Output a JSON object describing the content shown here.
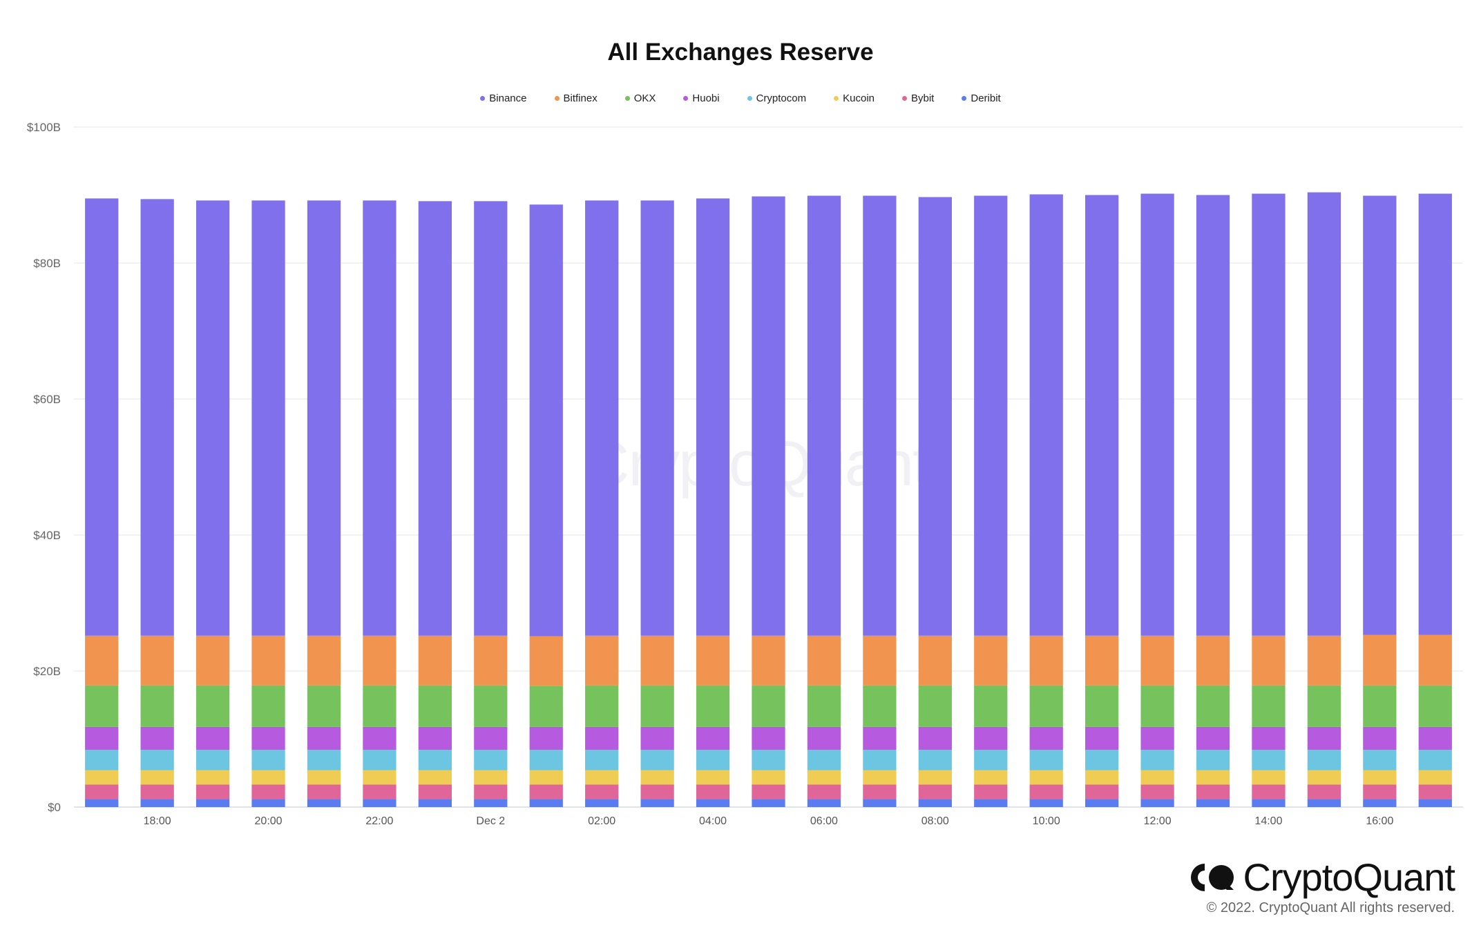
{
  "chart_data": {
    "type": "bar",
    "stacked": true,
    "title": "All Exchanges Reserve",
    "xlabel": "",
    "ylabel": "",
    "ylim": [
      0,
      100
    ],
    "y_ticks": [
      "$0",
      "$20B",
      "$40B",
      "$60B",
      "$80B",
      "$100B"
    ],
    "y_tick_values": [
      0,
      20,
      40,
      60,
      80,
      100
    ],
    "x_tick_labels": [
      "18:00",
      "20:00",
      "22:00",
      "Dec 2",
      "02:00",
      "04:00",
      "06:00",
      "08:00",
      "10:00",
      "12:00",
      "14:00",
      "16:00"
    ],
    "x_tick_indices": [
      1,
      3,
      5,
      7,
      9,
      11,
      13,
      15,
      17,
      19,
      21,
      23
    ],
    "grid": true,
    "legend_position": "top-center",
    "categories": [
      "17:00",
      "18:00",
      "19:00",
      "20:00",
      "21:00",
      "22:00",
      "23:00",
      "Dec 2 00:00",
      "01:00",
      "02:00",
      "03:00",
      "04:00",
      "05:00",
      "06:00",
      "07:00",
      "08:00",
      "09:00",
      "10:00",
      "11:00",
      "12:00",
      "13:00",
      "14:00",
      "15:00",
      "16:00",
      "17:00"
    ],
    "series": [
      {
        "name": "Deribit",
        "color": "#5b7cf0",
        "values": [
          1.2,
          1.2,
          1.2,
          1.2,
          1.2,
          1.2,
          1.2,
          1.2,
          1.2,
          1.2,
          1.2,
          1.2,
          1.2,
          1.2,
          1.2,
          1.2,
          1.2,
          1.2,
          1.2,
          1.2,
          1.2,
          1.2,
          1.2,
          1.2,
          1.2
        ]
      },
      {
        "name": "Bybit",
        "color": "#e0669a",
        "values": [
          2.1,
          2.1,
          2.1,
          2.1,
          2.1,
          2.1,
          2.1,
          2.1,
          2.1,
          2.1,
          2.1,
          2.1,
          2.1,
          2.1,
          2.1,
          2.1,
          2.1,
          2.1,
          2.1,
          2.1,
          2.1,
          2.1,
          2.1,
          2.1,
          2.1
        ]
      },
      {
        "name": "Kucoin",
        "color": "#efcd55",
        "values": [
          2.1,
          2.1,
          2.1,
          2.1,
          2.1,
          2.1,
          2.1,
          2.1,
          2.1,
          2.1,
          2.1,
          2.1,
          2.1,
          2.1,
          2.1,
          2.1,
          2.1,
          2.1,
          2.1,
          2.1,
          2.1,
          2.1,
          2.1,
          2.1,
          2.1
        ]
      },
      {
        "name": "Cryptocom",
        "color": "#6cc6e2",
        "values": [
          3.0,
          3.0,
          3.0,
          3.0,
          3.0,
          3.0,
          3.0,
          3.0,
          3.0,
          3.0,
          3.0,
          3.0,
          3.0,
          3.0,
          3.0,
          3.0,
          3.0,
          3.0,
          3.0,
          3.0,
          3.0,
          3.0,
          3.0,
          3.0,
          3.0
        ]
      },
      {
        "name": "Huobi",
        "color": "#b65ae0",
        "values": [
          3.4,
          3.4,
          3.4,
          3.4,
          3.4,
          3.4,
          3.4,
          3.4,
          3.4,
          3.4,
          3.4,
          3.4,
          3.4,
          3.4,
          3.4,
          3.4,
          3.4,
          3.4,
          3.4,
          3.4,
          3.4,
          3.4,
          3.4,
          3.4,
          3.4
        ]
      },
      {
        "name": "OKX",
        "color": "#76c35e",
        "values": [
          6.1,
          6.1,
          6.1,
          6.1,
          6.1,
          6.1,
          6.1,
          6.1,
          6.0,
          6.1,
          6.1,
          6.1,
          6.1,
          6.1,
          6.1,
          6.1,
          6.1,
          6.1,
          6.1,
          6.1,
          6.1,
          6.1,
          6.1,
          6.1,
          6.1
        ]
      },
      {
        "name": "Bitfinex",
        "color": "#f0944f",
        "values": [
          7.3,
          7.3,
          7.3,
          7.3,
          7.3,
          7.3,
          7.3,
          7.3,
          7.3,
          7.3,
          7.3,
          7.3,
          7.3,
          7.3,
          7.3,
          7.3,
          7.3,
          7.3,
          7.3,
          7.3,
          7.3,
          7.3,
          7.3,
          7.4,
          7.4
        ]
      },
      {
        "name": "Binance",
        "color": "#8070ec",
        "values": [
          64.3,
          64.2,
          64.0,
          64.0,
          64.0,
          64.0,
          63.9,
          63.9,
          63.5,
          64.0,
          64.0,
          64.3,
          64.6,
          64.7,
          64.7,
          64.5,
          64.7,
          64.9,
          64.8,
          65.0,
          64.8,
          65.0,
          65.2,
          64.6,
          64.9
        ]
      }
    ],
    "legend_order": [
      "Binance",
      "Bitfinex",
      "OKX",
      "Huobi",
      "Cryptocom",
      "Kucoin",
      "Bybit",
      "Deribit"
    ]
  },
  "watermark": "CryptoQuant",
  "brand": {
    "name": "CryptoQuant",
    "logo_icon": "cryptoquant-logo-icon",
    "copyright": "© 2022. CryptoQuant All rights reserved."
  }
}
